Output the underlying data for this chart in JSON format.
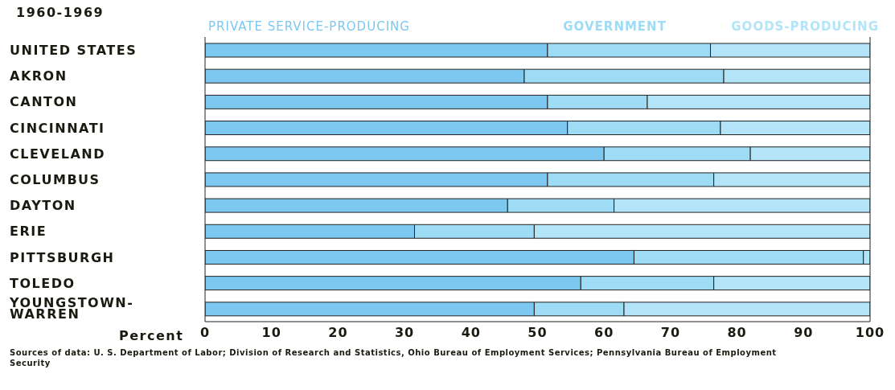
{
  "chart_data": {
    "type": "bar",
    "orientation": "horizontal",
    "stacked": true,
    "title": "1960-1969",
    "xlabel": "Percent",
    "categories": [
      "UNITED STATES",
      "AKRON",
      "CANTON",
      "CINCINNATI",
      "CLEVELAND",
      "COLUMBUS",
      "DAYTON",
      "ERIE",
      "PITTSBURGH",
      "TOLEDO",
      "YOUNGSTOWN-WARREN"
    ],
    "series": [
      {
        "name": "PRIVATE SERVICE-PRODUCING",
        "color": "#7cc8f0",
        "values": [
          51.5,
          48,
          51.5,
          54.5,
          60,
          51.5,
          45.5,
          31.5,
          64.5,
          56.5,
          49.5
        ]
      },
      {
        "name": "GOVERNMENT",
        "color": "#9edcf5",
        "values": [
          24.5,
          30,
          15,
          23,
          22,
          25,
          16,
          18,
          34.5,
          20,
          13.5
        ]
      },
      {
        "name": "GOODS-PRODUCING",
        "color": "#b3e4f8",
        "values": [
          24,
          22,
          33.5,
          22.5,
          18,
          23.5,
          38.5,
          50.5,
          1,
          23.5,
          37
        ]
      }
    ],
    "xlim": [
      0,
      100
    ],
    "xticks": [
      0,
      10,
      20,
      30,
      40,
      50,
      60,
      70,
      80,
      90,
      100
    ],
    "grid": false,
    "annotations": [
      "Sources of data:  U. S. Department of Labor; Division of Research and Statistics, Ohio Bureau of Employment Services; Pennsylvania Bureau of Employment Security"
    ]
  }
}
